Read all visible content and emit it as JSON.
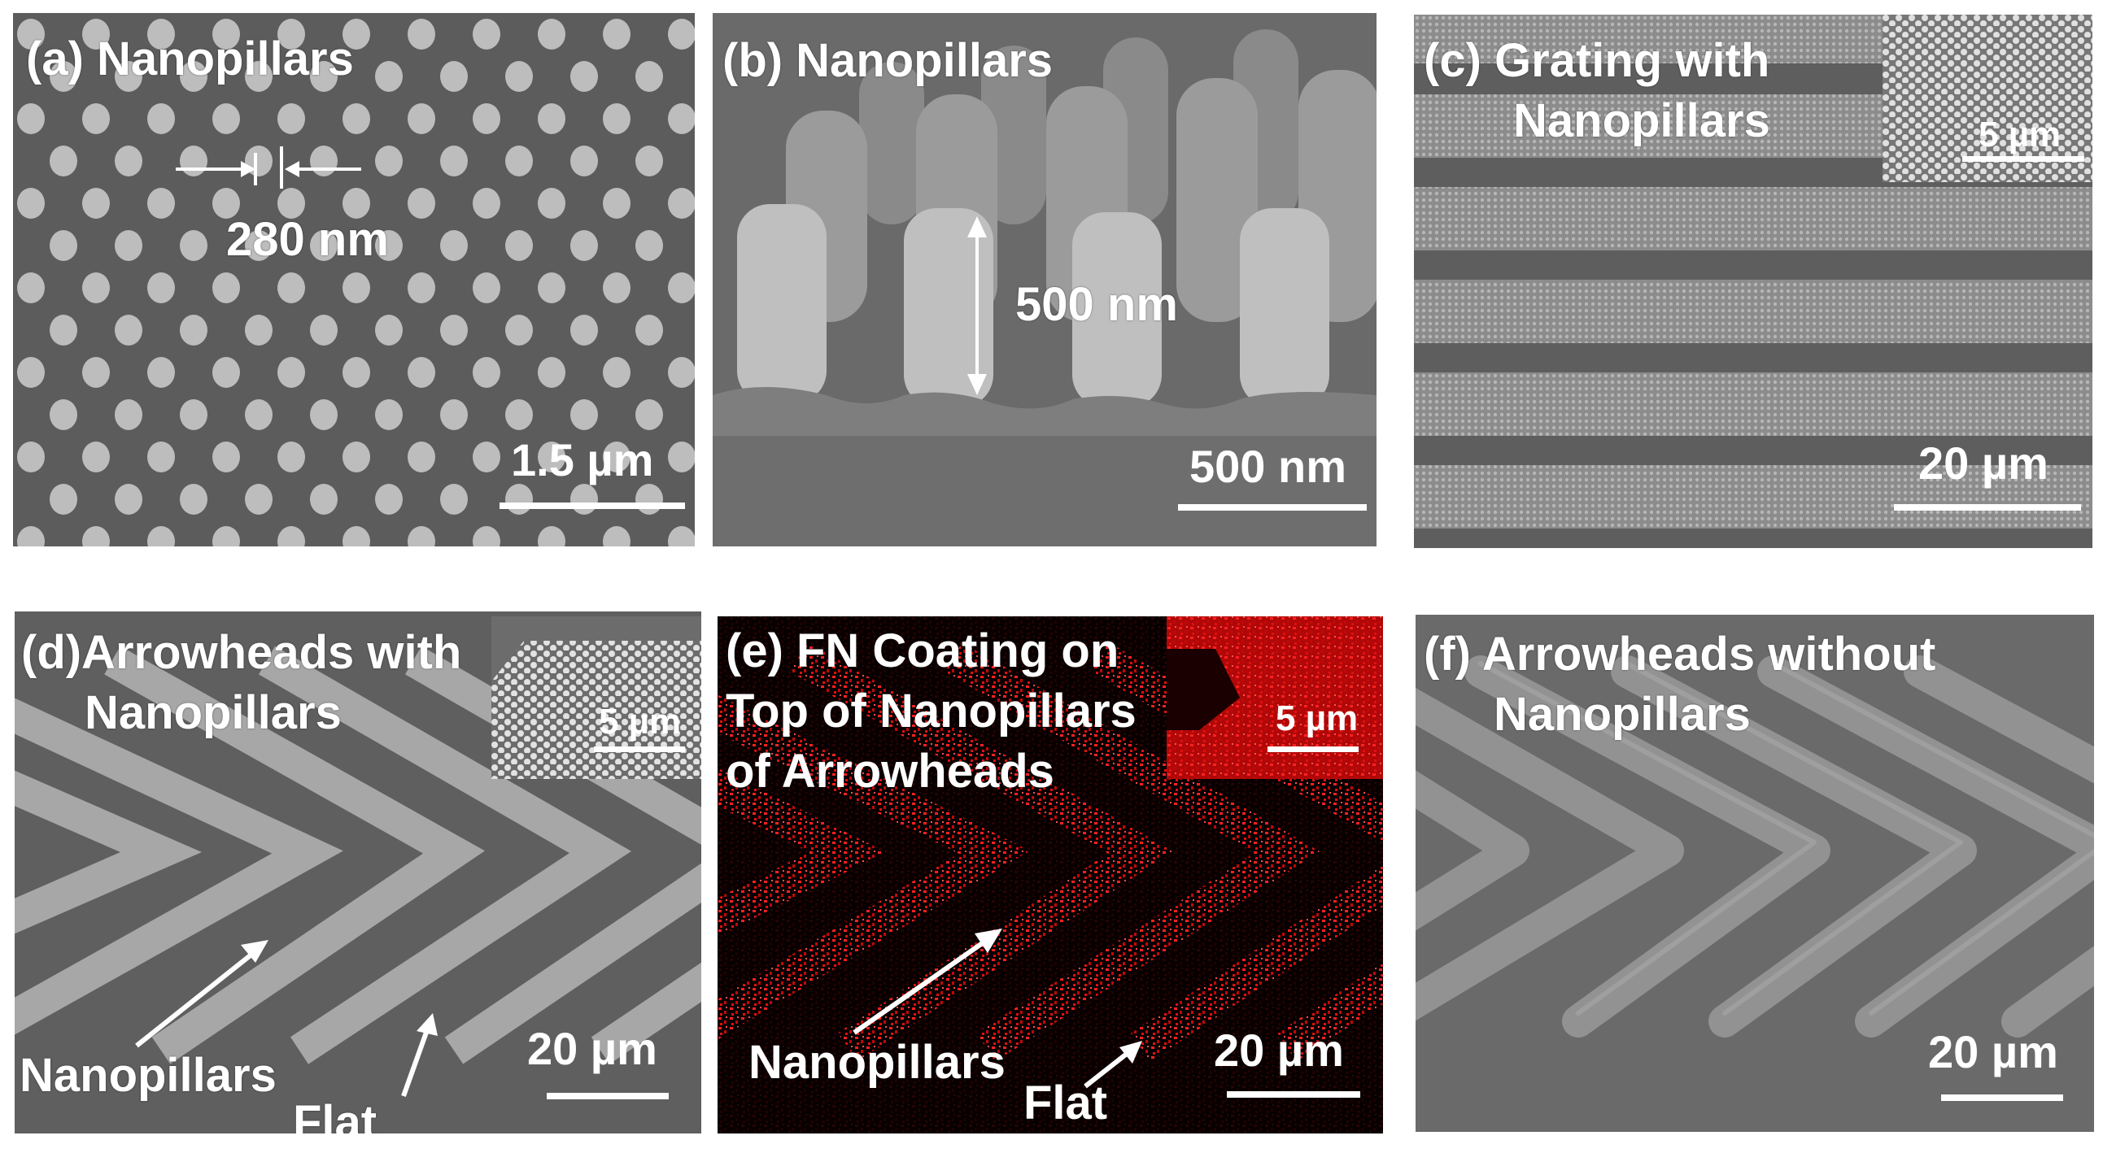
{
  "panels": [
    {
      "id": "a",
      "label": "(a) Nanopillars",
      "annotation": "280 nm",
      "scale_bar": "1.5 µm"
    },
    {
      "id": "b",
      "label": "(b) Nanopillars",
      "annotation": "500 nm",
      "scale_bar": "500 nm"
    },
    {
      "id": "c",
      "label_line1": "(c) Grating with",
      "label_line2": "Nanopillars",
      "inset_scale": "5 µm",
      "scale_bar": "20 µm"
    },
    {
      "id": "d",
      "label_line1": "(d)Arrowheads with",
      "label_line2": "Nanopillars",
      "inset_scale": "5 µm",
      "callout_nanopillars": "Nanopillars",
      "callout_flat": "Flat",
      "scale_bar": "20 µm"
    },
    {
      "id": "e",
      "label_line1": "(e) FN Coating on",
      "label_line2": "Top of Nanopillars",
      "label_line3": "of Arrowheads",
      "inset_scale": "5 µm",
      "callout_nanopillars": "Nanopillars",
      "callout_flat": "Flat",
      "scale_bar": "20 µm"
    },
    {
      "id": "f",
      "label_line1": "(f) Arrowheads without",
      "label_line2": "Nanopillars",
      "scale_bar": "20 µm"
    }
  ],
  "colors": {
    "sem_gray": "#5a5a5a",
    "pillar_gray": "#b4b4b4",
    "fluorescence_red": "#e01010",
    "annotation": "#ffffff"
  }
}
